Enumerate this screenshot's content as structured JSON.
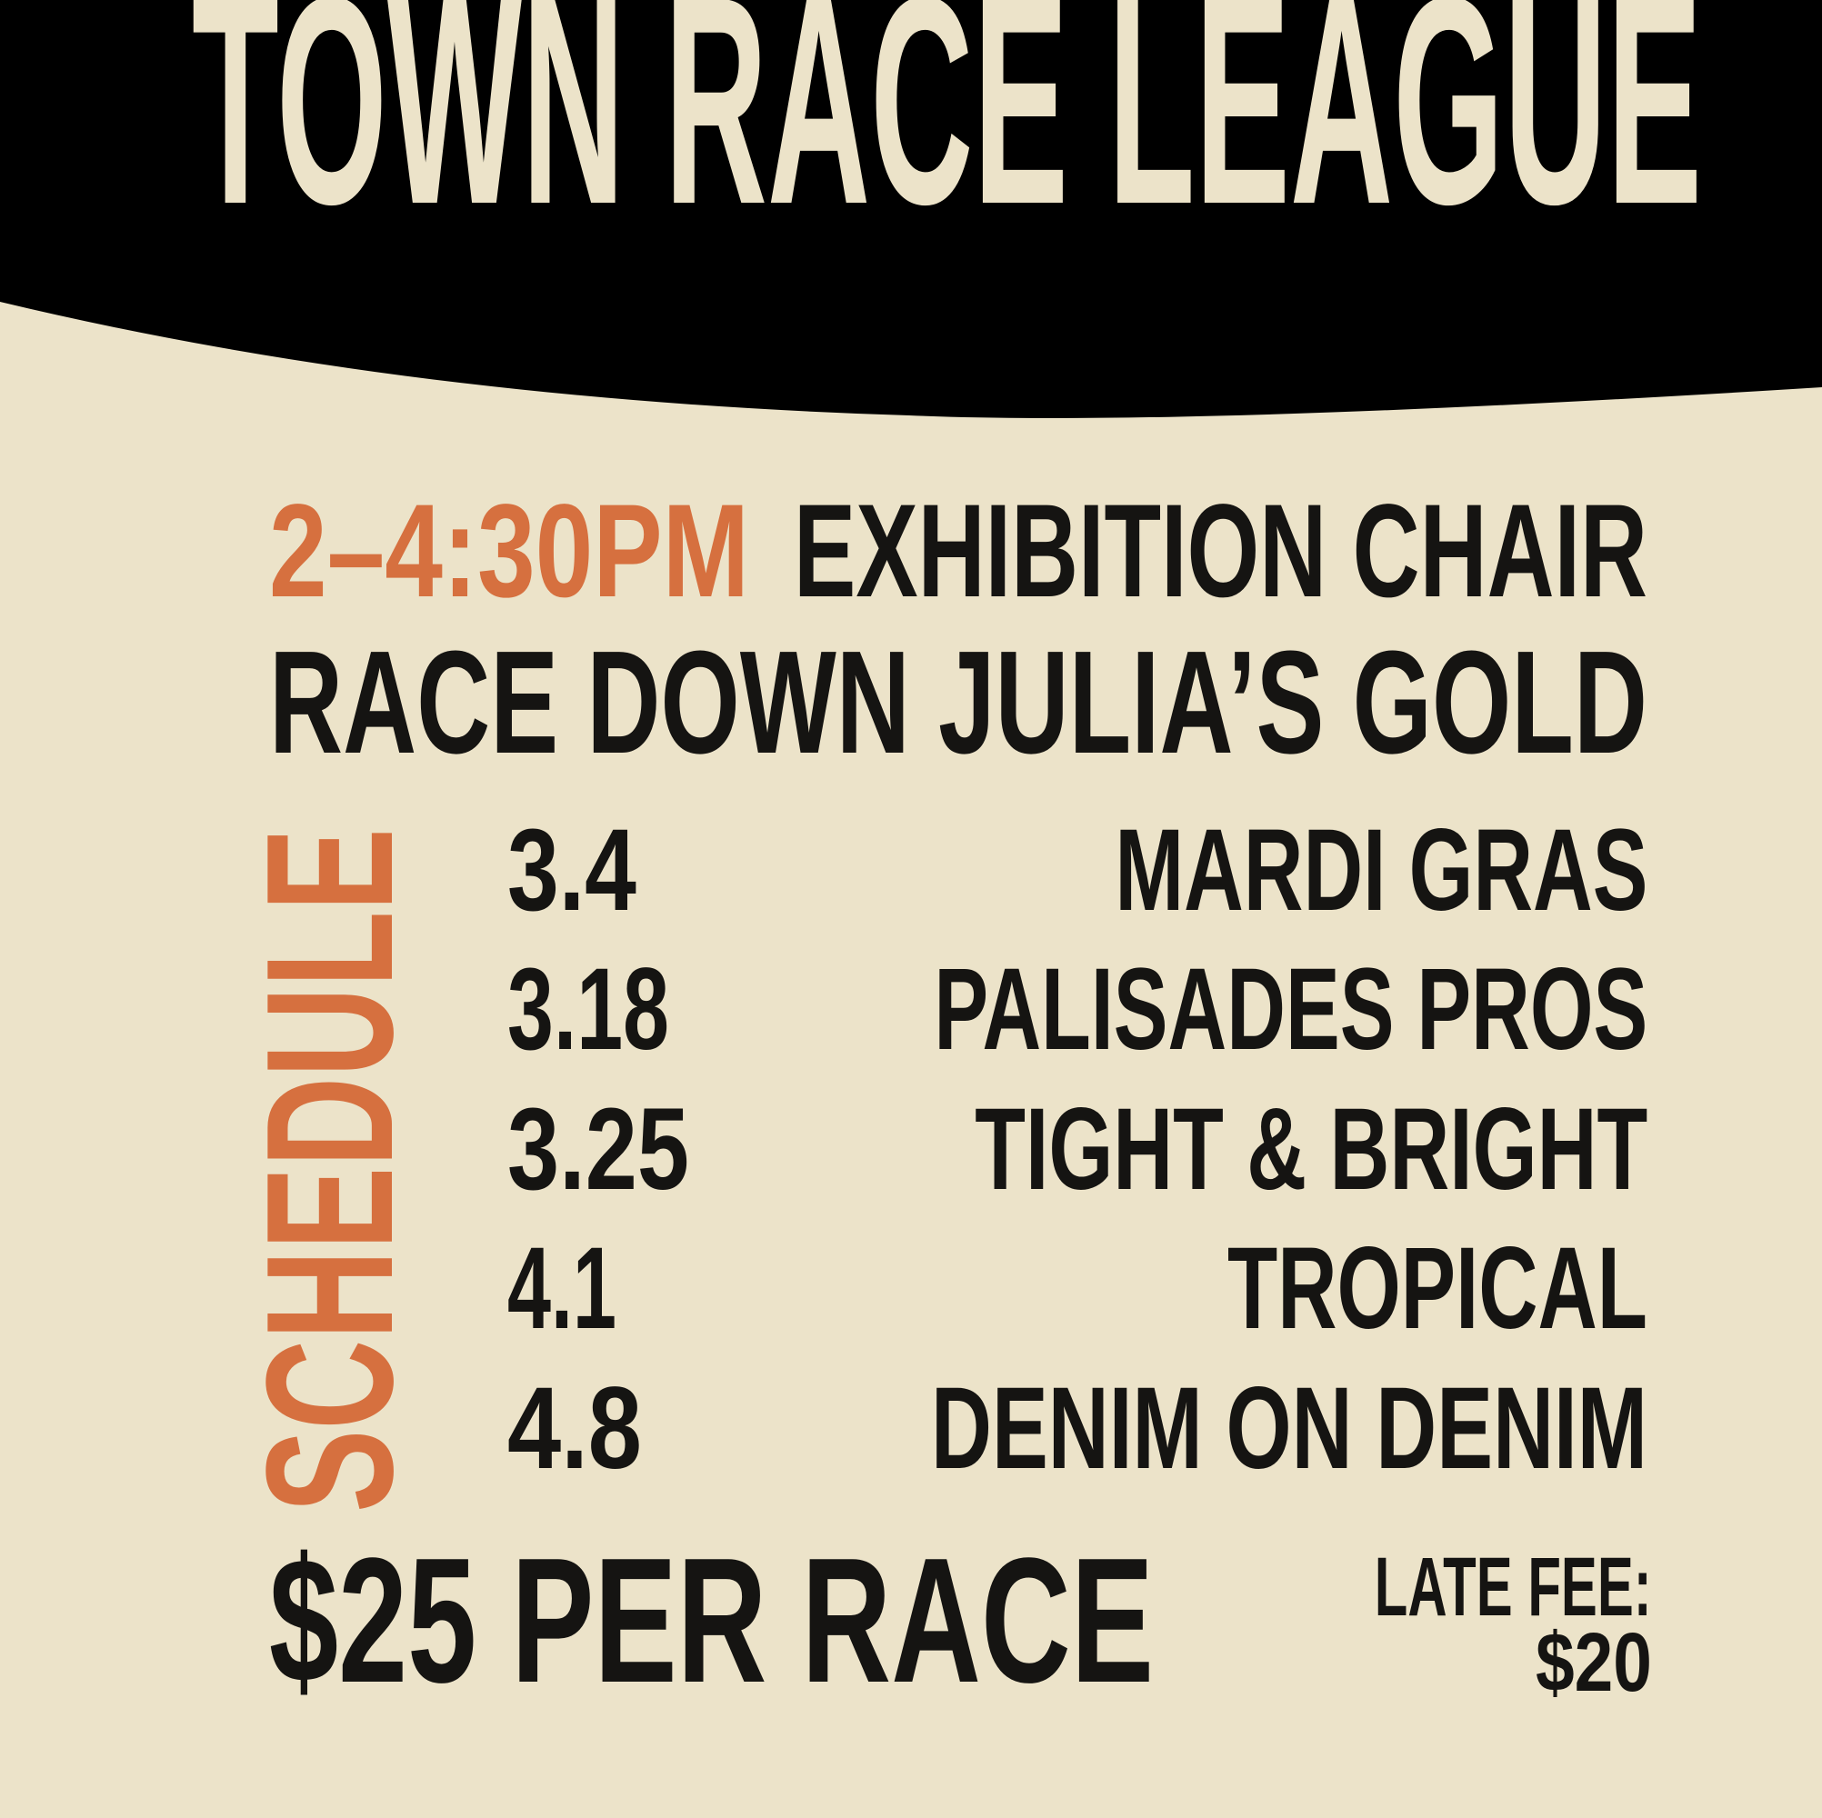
{
  "colors": {
    "background": "#ECE3C9",
    "band": "#000000",
    "accent": "#D6703F",
    "text": "#151412"
  },
  "title": "TOWN RACE LEAGUE",
  "event": {
    "time": "2–4:30PM",
    "line1": "EXHIBITION CHAIR",
    "line2": "RACE DOWN JULIA’S GOLD"
  },
  "schedule": {
    "label": "SCHEDULE",
    "rows": [
      {
        "date": "3.4",
        "theme": "MARDI GRAS"
      },
      {
        "date": "3.18",
        "theme": "PALISADES PROS"
      },
      {
        "date": "3.25",
        "theme": "TIGHT & BRIGHT"
      },
      {
        "date": "4.1",
        "theme": "TROPICAL"
      },
      {
        "date": "4.8",
        "theme": "DENIM ON DENIM"
      }
    ]
  },
  "price": "$25 PER RACE",
  "late_fee": {
    "label": "LATE FEE:",
    "amount": "$20"
  }
}
